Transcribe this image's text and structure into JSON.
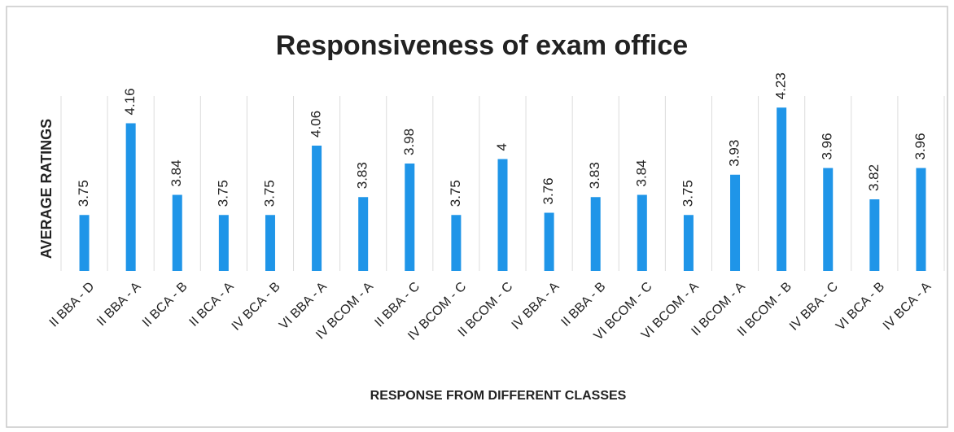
{
  "chart_data": {
    "type": "bar",
    "title": "Responsiveness of exam office",
    "x_label": "RESPONSE FROM DIFFERENT CLASSES",
    "y_label": "AVERAGE   RATINGS",
    "categories": [
      "II BBA - D",
      "II BBA - A",
      "II BCA - B",
      "II BCA - A",
      "IV BCA - B",
      "VI BBA - A",
      "IV BCOM - A",
      "II BBA - C",
      "IV BCOM - C",
      "II BCOM - C",
      "IV BBA - A",
      "II BBA - B",
      "VI BCOM - C",
      "VI BCOM - A",
      "II BCOM - A",
      "II BCOM - B",
      "IV BBA - C",
      "VI BCA - B",
      "IV BCA - A"
    ],
    "values": [
      3.75,
      4.16,
      3.84,
      3.75,
      3.75,
      4.06,
      3.83,
      3.98,
      3.75,
      4,
      3.76,
      3.83,
      3.84,
      3.75,
      3.93,
      4.23,
      3.96,
      3.82,
      3.96
    ],
    "color": "#1f95e8",
    "ylim": [
      3.5,
      4.3
    ]
  }
}
